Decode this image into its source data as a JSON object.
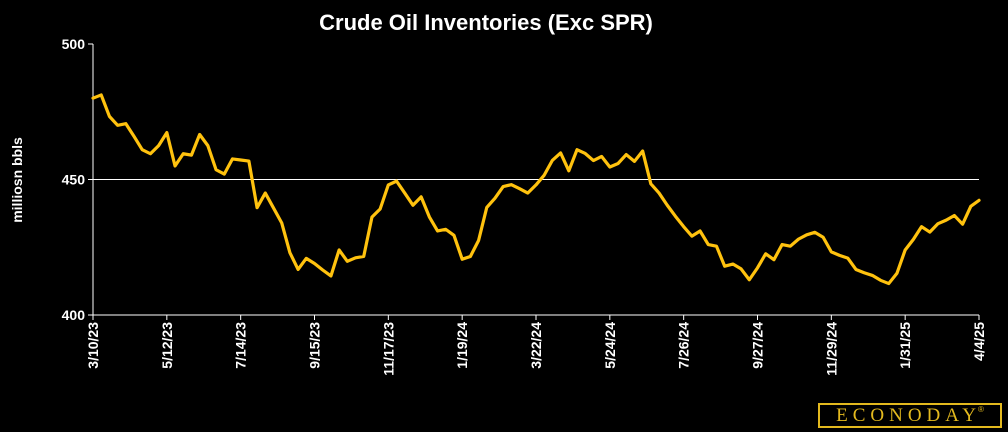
{
  "chart_data": {
    "type": "line",
    "title": "Crude Oil Inventories (Exc SPR)",
    "ylabel": "milliosn bbls",
    "xlabel": "",
    "ylim": [
      400,
      500
    ],
    "yticks": [
      400,
      450,
      500
    ],
    "reference_line": 450,
    "grid": false,
    "line_color": "#ffc20e",
    "x_tick_labels": [
      "3/10/23",
      "5/12/23",
      "7/14/23",
      "9/15/23",
      "11/17/23",
      "1/19/24",
      "3/22/24",
      "5/24/24",
      "7/26/24",
      "9/27/24",
      "11/29/24",
      "1/31/25",
      "4/4/25"
    ],
    "series": [
      {
        "values": [
          480.0,
          481.2,
          473.3,
          470.0,
          470.6,
          465.9,
          461.0,
          459.5,
          462.5,
          467.3,
          455.0,
          459.5,
          459.0,
          466.6,
          462.5,
          453.6,
          452.0,
          457.6,
          457.2,
          456.8,
          439.6,
          445.0,
          439.5,
          434.0,
          423.0,
          416.8,
          420.9,
          419.0,
          416.6,
          414.4,
          424.0,
          419.8,
          421.1,
          421.6,
          436.1,
          439.1,
          448.0,
          449.4,
          445.0,
          440.5,
          443.6,
          436.2,
          431.0,
          431.6,
          429.4,
          420.6,
          421.6,
          427.5,
          439.7,
          443.1,
          447.4,
          448.1,
          446.6,
          445.0,
          448.0,
          451.6,
          457.1,
          459.8,
          453.2,
          461.0,
          459.6,
          457.0,
          458.5,
          454.6,
          455.9,
          459.2,
          456.7,
          460.5,
          448.4,
          445.0,
          440.5,
          436.4,
          432.6,
          429.1,
          431.0,
          426.0,
          425.4,
          418.0,
          418.8,
          417.0,
          413.0,
          417.4,
          422.6,
          420.4,
          426.0,
          425.4,
          428.0,
          429.6,
          430.5,
          428.7,
          423.3,
          422.0,
          421.0,
          416.8,
          415.6,
          414.6,
          412.8,
          411.6,
          415.4,
          424.0,
          427.9,
          432.6,
          430.6,
          433.7,
          435.0,
          436.7,
          433.5,
          440.1,
          442.3
        ]
      }
    ]
  },
  "branding": {
    "logo": "ECONODAY",
    "reg": "®"
  }
}
